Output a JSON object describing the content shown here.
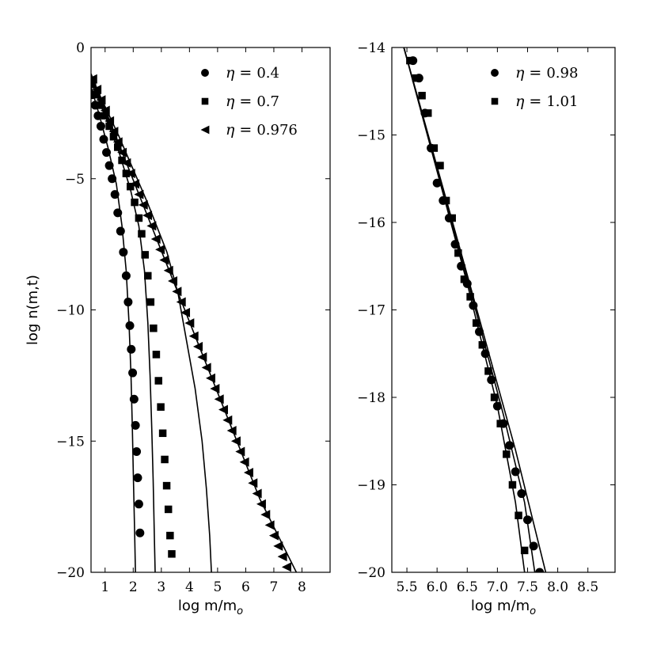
{
  "chart_data": [
    {
      "type": "scatter",
      "title": "",
      "xlabel": "log m/m_o",
      "ylabel": "log n(m,t)",
      "xlim": [
        0.5,
        9.0
      ],
      "ylim": [
        -20,
        0
      ],
      "xticks": [
        1,
        2,
        3,
        4,
        5,
        6,
        7,
        8
      ],
      "yticks": [
        0,
        -5,
        -10,
        -15,
        -20
      ],
      "xtick_labels": [
        "1",
        "2",
        "3",
        "4",
        "5",
        "6",
        "7",
        "8"
      ],
      "ytick_labels": [
        "0",
        "−5",
        "−10",
        "−15",
        "−20"
      ],
      "legend_position": "top-right",
      "series": [
        {
          "name": "η = 0.4",
          "eta_symbol": "η =",
          "eta_value": "0.4",
          "marker": "circle",
          "points": [
            [
              0.55,
              -1.8
            ],
            [
              0.65,
              -2.2
            ],
            [
              0.75,
              -2.6
            ],
            [
              0.85,
              -3.0
            ],
            [
              0.95,
              -3.5
            ],
            [
              1.05,
              -4.0
            ],
            [
              1.15,
              -4.5
            ],
            [
              1.25,
              -5.0
            ],
            [
              1.35,
              -5.6
            ],
            [
              1.45,
              -6.3
            ],
            [
              1.55,
              -7.0
            ],
            [
              1.65,
              -7.8
            ],
            [
              1.75,
              -8.7
            ],
            [
              1.82,
              -9.7
            ],
            [
              1.88,
              -10.6
            ],
            [
              1.93,
              -11.5
            ],
            [
              1.98,
              -12.4
            ],
            [
              2.03,
              -13.4
            ],
            [
              2.08,
              -14.4
            ],
            [
              2.12,
              -15.4
            ],
            [
              2.16,
              -16.4
            ],
            [
              2.2,
              -17.4
            ],
            [
              2.24,
              -18.5
            ]
          ],
          "fit_line": [
            [
              0.5,
              -1.5
            ],
            [
              0.8,
              -2.6
            ],
            [
              1.1,
              -3.8
            ],
            [
              1.4,
              -5.2
            ],
            [
              1.6,
              -6.8
            ],
            [
              1.75,
              -8.5
            ],
            [
              1.85,
              -10.5
            ],
            [
              1.92,
              -12.5
            ],
            [
              1.97,
              -14.5
            ],
            [
              2.01,
              -16.5
            ],
            [
              2.05,
              -18.5
            ],
            [
              2.08,
              -20
            ]
          ]
        },
        {
          "name": "η = 0.7",
          "eta_symbol": "η =",
          "eta_value": "0.7",
          "marker": "square",
          "points": [
            [
              0.55,
              -1.4
            ],
            [
              0.7,
              -1.8
            ],
            [
              0.85,
              -2.2
            ],
            [
              1.0,
              -2.6
            ],
            [
              1.15,
              -3.0
            ],
            [
              1.3,
              -3.4
            ],
            [
              1.45,
              -3.8
            ],
            [
              1.6,
              -4.3
            ],
            [
              1.75,
              -4.8
            ],
            [
              1.9,
              -5.3
            ],
            [
              2.05,
              -5.9
            ],
            [
              2.2,
              -6.5
            ],
            [
              2.3,
              -7.1
            ],
            [
              2.42,
              -7.9
            ],
            [
              2.52,
              -8.7
            ],
            [
              2.62,
              -9.7
            ],
            [
              2.72,
              -10.7
            ],
            [
              2.82,
              -11.7
            ],
            [
              2.9,
              -12.7
            ],
            [
              2.98,
              -13.7
            ],
            [
              3.05,
              -14.7
            ],
            [
              3.12,
              -15.7
            ],
            [
              3.19,
              -16.7
            ],
            [
              3.25,
              -17.6
            ],
            [
              3.31,
              -18.6
            ],
            [
              3.37,
              -19.3
            ]
          ],
          "fit_line": [
            [
              0.5,
              -1.3
            ],
            [
              1.0,
              -2.6
            ],
            [
              1.5,
              -4.0
            ],
            [
              1.9,
              -5.4
            ],
            [
              2.2,
              -6.8
            ],
            [
              2.4,
              -8.5
            ],
            [
              2.52,
              -10.5
            ],
            [
              2.6,
              -12.5
            ],
            [
              2.66,
              -14.5
            ],
            [
              2.71,
              -16.5
            ],
            [
              2.75,
              -18.5
            ],
            [
              2.78,
              -20
            ]
          ]
        },
        {
          "name": "η = 0.976",
          "eta_symbol": "η =",
          "eta_value": "0.976",
          "marker": "triangle-left",
          "points": [
            [
              0.55,
              -1.2
            ],
            [
              0.7,
              -1.6
            ],
            [
              0.85,
              -2.0
            ],
            [
              1.0,
              -2.4
            ],
            [
              1.15,
              -2.8
            ],
            [
              1.3,
              -3.2
            ],
            [
              1.45,
              -3.6
            ],
            [
              1.6,
              -4.0
            ],
            [
              1.75,
              -4.4
            ],
            [
              1.9,
              -4.8
            ],
            [
              2.05,
              -5.2
            ],
            [
              2.2,
              -5.6
            ],
            [
              2.35,
              -6.0
            ],
            [
              2.5,
              -6.4
            ],
            [
              2.65,
              -6.8
            ],
            [
              2.8,
              -7.3
            ],
            [
              2.95,
              -7.7
            ],
            [
              3.1,
              -8.1
            ],
            [
              3.25,
              -8.5
            ],
            [
              3.4,
              -8.9
            ],
            [
              3.55,
              -9.3
            ],
            [
              3.7,
              -9.7
            ],
            [
              3.85,
              -10.1
            ],
            [
              4.0,
              -10.5
            ],
            [
              4.15,
              -11.0
            ],
            [
              4.3,
              -11.4
            ],
            [
              4.45,
              -11.8
            ],
            [
              4.6,
              -12.2
            ],
            [
              4.75,
              -12.6
            ],
            [
              4.9,
              -13.0
            ],
            [
              5.05,
              -13.4
            ],
            [
              5.2,
              -13.8
            ],
            [
              5.35,
              -14.2
            ],
            [
              5.5,
              -14.6
            ],
            [
              5.65,
              -15.0
            ],
            [
              5.8,
              -15.4
            ],
            [
              5.95,
              -15.8
            ],
            [
              6.1,
              -16.2
            ],
            [
              6.25,
              -16.6
            ],
            [
              6.4,
              -17.0
            ],
            [
              6.55,
              -17.4
            ],
            [
              6.7,
              -17.8
            ],
            [
              6.85,
              -18.2
            ],
            [
              7.0,
              -18.6
            ],
            [
              7.15,
              -19.0
            ],
            [
              7.3,
              -19.4
            ],
            [
              7.45,
              -19.8
            ]
          ],
          "fit_line": [
            [
              0.5,
              -1.1
            ],
            [
              1.5,
              -3.4
            ],
            [
              2.5,
              -5.9
            ],
            [
              3.2,
              -7.8
            ],
            [
              3.6,
              -9.4
            ],
            [
              3.9,
              -11.2
            ],
            [
              4.2,
              -13.0
            ],
            [
              4.45,
              -15.0
            ],
            [
              4.6,
              -16.8
            ],
            [
              4.72,
              -18.6
            ],
            [
              4.78,
              -20
            ]
          ],
          "fit_line_2": [
            [
              0.5,
              -1.0
            ],
            [
              2.5,
              -6.4
            ],
            [
              4.5,
              -11.8
            ],
            [
              6.5,
              -17.2
            ],
            [
              7.8,
              -20
            ]
          ]
        }
      ]
    },
    {
      "type": "scatter",
      "title": "",
      "xlabel": "log m/m_o",
      "ylabel": "",
      "xlim": [
        5.25,
        8.95
      ],
      "ylim": [
        -20,
        -14
      ],
      "xticks": [
        5.5,
        6.0,
        6.5,
        7.0,
        7.5,
        8.0,
        8.5
      ],
      "yticks": [
        -14,
        -15,
        -16,
        -17,
        -18,
        -19,
        -20
      ],
      "xtick_labels": [
        "5.5",
        "6.0",
        "6.5",
        "7.0",
        "7.5",
        "8.0",
        "8.5"
      ],
      "ytick_labels": [
        "−14",
        "−15",
        "−16",
        "−17",
        "−18",
        "−19",
        "−20"
      ],
      "legend_position": "top-right",
      "series": [
        {
          "name": "η = 0.98",
          "eta_symbol": "η =",
          "eta_value": "0.98",
          "marker": "circle",
          "points": [
            [
              5.6,
              -14.15
            ],
            [
              5.7,
              -14.35
            ],
            [
              5.8,
              -14.75
            ],
            [
              5.9,
              -15.15
            ],
            [
              6.0,
              -15.55
            ],
            [
              6.1,
              -15.75
            ],
            [
              6.2,
              -15.95
            ],
            [
              6.3,
              -16.25
            ],
            [
              6.4,
              -16.5
            ],
            [
              6.5,
              -16.7
            ],
            [
              6.6,
              -16.95
            ],
            [
              6.7,
              -17.25
            ],
            [
              6.8,
              -17.5
            ],
            [
              6.9,
              -17.8
            ],
            [
              7.0,
              -18.1
            ],
            [
              7.1,
              -18.3
            ],
            [
              7.2,
              -18.55
            ],
            [
              7.3,
              -18.85
            ],
            [
              7.4,
              -19.1
            ],
            [
              7.5,
              -19.4
            ],
            [
              7.6,
              -19.7
            ],
            [
              7.7,
              -20.0
            ]
          ],
          "fit_line": [
            [
              5.45,
              -14.0
            ],
            [
              6.5,
              -16.6
            ],
            [
              7.3,
              -18.6
            ],
            [
              7.8,
              -20.0
            ]
          ]
        },
        {
          "name": "η = 1.01",
          "eta_symbol": "η =",
          "eta_value": "1.01",
          "marker": "square",
          "points": [
            [
              5.55,
              -14.15
            ],
            [
              5.65,
              -14.35
            ],
            [
              5.75,
              -14.55
            ],
            [
              5.85,
              -14.75
            ],
            [
              5.95,
              -15.15
            ],
            [
              6.05,
              -15.35
            ],
            [
              6.15,
              -15.75
            ],
            [
              6.25,
              -15.95
            ],
            [
              6.35,
              -16.35
            ],
            [
              6.45,
              -16.65
            ],
            [
              6.55,
              -16.85
            ],
            [
              6.65,
              -17.15
            ],
            [
              6.75,
              -17.4
            ],
            [
              6.85,
              -17.7
            ],
            [
              6.95,
              -18.0
            ],
            [
              7.05,
              -18.3
            ],
            [
              7.15,
              -18.65
            ],
            [
              7.25,
              -19.0
            ],
            [
              7.35,
              -19.35
            ],
            [
              7.45,
              -19.75
            ]
          ],
          "fit_line": [
            [
              5.45,
              -14.0
            ],
            [
              6.5,
              -16.7
            ],
            [
              7.0,
              -18.1
            ],
            [
              7.3,
              -19.2
            ],
            [
              7.45,
              -20.0
            ]
          ],
          "fit_line_2": [
            [
              5.45,
              -14.0
            ],
            [
              6.6,
              -16.9
            ],
            [
              7.1,
              -18.2
            ],
            [
              7.45,
              -19.2
            ],
            [
              7.62,
              -20.0
            ]
          ]
        }
      ]
    }
  ]
}
